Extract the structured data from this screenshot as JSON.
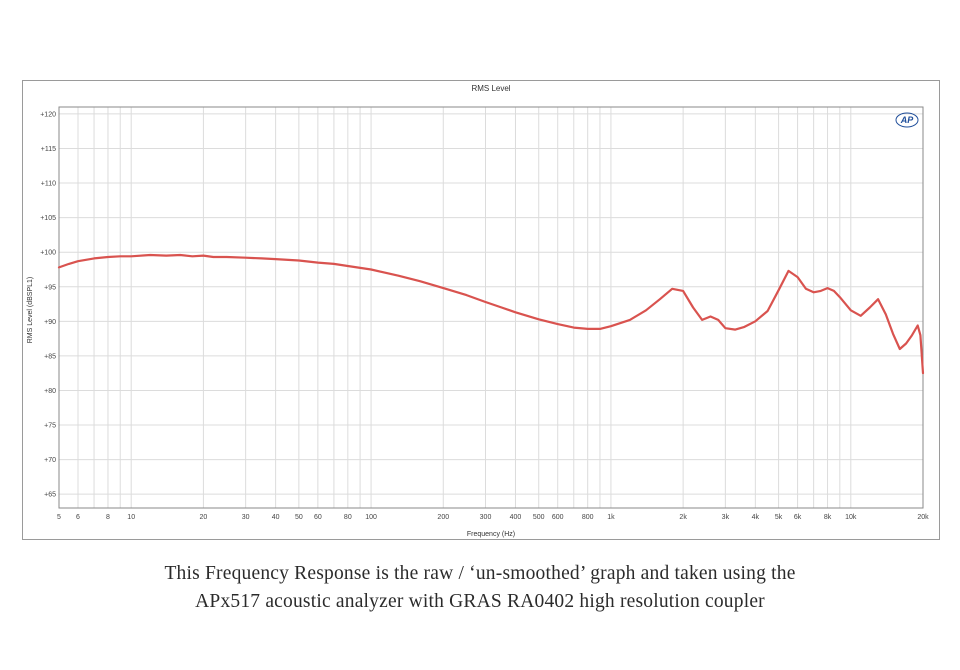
{
  "chart_data": {
    "type": "line",
    "title": "RMS Level",
    "xlabel": "Frequency (Hz)",
    "ylabel": "RMS Level (dBSPL1)",
    "x_scale": "log",
    "xlim": [
      5,
      20000
    ],
    "ylim": [
      63,
      121
    ],
    "grid": true,
    "x_ticks": [
      {
        "value": 5,
        "label": "5"
      },
      {
        "value": 6,
        "label": "6"
      },
      {
        "value": 8,
        "label": "8"
      },
      {
        "value": 10,
        "label": "10"
      },
      {
        "value": 20,
        "label": "20"
      },
      {
        "value": 30,
        "label": "30"
      },
      {
        "value": 40,
        "label": "40"
      },
      {
        "value": 50,
        "label": "50"
      },
      {
        "value": 60,
        "label": "60"
      },
      {
        "value": 80,
        "label": "80"
      },
      {
        "value": 100,
        "label": "100"
      },
      {
        "value": 200,
        "label": "200"
      },
      {
        "value": 300,
        "label": "300"
      },
      {
        "value": 400,
        "label": "400"
      },
      {
        "value": 500,
        "label": "500"
      },
      {
        "value": 600,
        "label": "600"
      },
      {
        "value": 800,
        "label": "800"
      },
      {
        "value": 1000,
        "label": "1k"
      },
      {
        "value": 2000,
        "label": "2k"
      },
      {
        "value": 3000,
        "label": "3k"
      },
      {
        "value": 4000,
        "label": "4k"
      },
      {
        "value": 5000,
        "label": "5k"
      },
      {
        "value": 6000,
        "label": "6k"
      },
      {
        "value": 8000,
        "label": "8k"
      },
      {
        "value": 10000,
        "label": "10k"
      },
      {
        "value": 20000,
        "label": "20k"
      }
    ],
    "y_ticks": [
      {
        "value": 120,
        "label": "+120"
      },
      {
        "value": 115,
        "label": "+115"
      },
      {
        "value": 110,
        "label": "+110"
      },
      {
        "value": 105,
        "label": "+105"
      },
      {
        "value": 100,
        "label": "+100"
      },
      {
        "value": 95,
        "label": "+95"
      },
      {
        "value": 90,
        "label": "+90"
      },
      {
        "value": 85,
        "label": "+85"
      },
      {
        "value": 80,
        "label": "+80"
      },
      {
        "value": 75,
        "label": "+75"
      },
      {
        "value": 70,
        "label": "+70"
      },
      {
        "value": 65,
        "label": "+65"
      }
    ],
    "series": [
      {
        "color": "#d9534f",
        "points": [
          [
            5,
            97.8
          ],
          [
            5.5,
            98.3
          ],
          [
            6,
            98.7
          ],
          [
            7,
            99.1
          ],
          [
            8,
            99.3
          ],
          [
            9,
            99.4
          ],
          [
            10,
            99.4
          ],
          [
            12,
            99.6
          ],
          [
            14,
            99.5
          ],
          [
            16,
            99.6
          ],
          [
            18,
            99.4
          ],
          [
            20,
            99.5
          ],
          [
            22,
            99.3
          ],
          [
            25,
            99.3
          ],
          [
            30,
            99.2
          ],
          [
            35,
            99.1
          ],
          [
            40,
            99.0
          ],
          [
            50,
            98.8
          ],
          [
            60,
            98.5
          ],
          [
            70,
            98.3
          ],
          [
            80,
            98.0
          ],
          [
            100,
            97.5
          ],
          [
            130,
            96.6
          ],
          [
            160,
            95.8
          ],
          [
            200,
            94.8
          ],
          [
            250,
            93.8
          ],
          [
            300,
            92.8
          ],
          [
            350,
            92.0
          ],
          [
            400,
            91.3
          ],
          [
            500,
            90.3
          ],
          [
            600,
            89.6
          ],
          [
            700,
            89.1
          ],
          [
            800,
            88.9
          ],
          [
            900,
            88.9
          ],
          [
            1000,
            89.3
          ],
          [
            1200,
            90.2
          ],
          [
            1400,
            91.6
          ],
          [
            1600,
            93.2
          ],
          [
            1800,
            94.7
          ],
          [
            2000,
            94.4
          ],
          [
            2200,
            92.0
          ],
          [
            2400,
            90.2
          ],
          [
            2600,
            90.7
          ],
          [
            2800,
            90.2
          ],
          [
            3000,
            89.0
          ],
          [
            3300,
            88.8
          ],
          [
            3600,
            89.2
          ],
          [
            4000,
            90.0
          ],
          [
            4500,
            91.5
          ],
          [
            5000,
            94.5
          ],
          [
            5500,
            97.3
          ],
          [
            6000,
            96.4
          ],
          [
            6500,
            94.7
          ],
          [
            7000,
            94.2
          ],
          [
            7500,
            94.4
          ],
          [
            8000,
            94.8
          ],
          [
            8500,
            94.4
          ],
          [
            9000,
            93.5
          ],
          [
            10000,
            91.6
          ],
          [
            11000,
            90.8
          ],
          [
            12000,
            92.0
          ],
          [
            13000,
            93.2
          ],
          [
            14000,
            91.0
          ],
          [
            15000,
            88.2
          ],
          [
            16000,
            86.0
          ],
          [
            17000,
            86.8
          ],
          [
            18000,
            88.0
          ],
          [
            19000,
            89.4
          ],
          [
            19500,
            88.0
          ],
          [
            20000,
            82.5
          ]
        ]
      }
    ]
  },
  "logo": {
    "label": "AP",
    "color": "#1f4e9a"
  },
  "caption": {
    "line1": "This Frequency Response is the raw / ‘un-smoothed’ graph and taken using the",
    "line2": "APx517 acoustic analyzer with GRAS RA0402 high resolution coupler"
  }
}
